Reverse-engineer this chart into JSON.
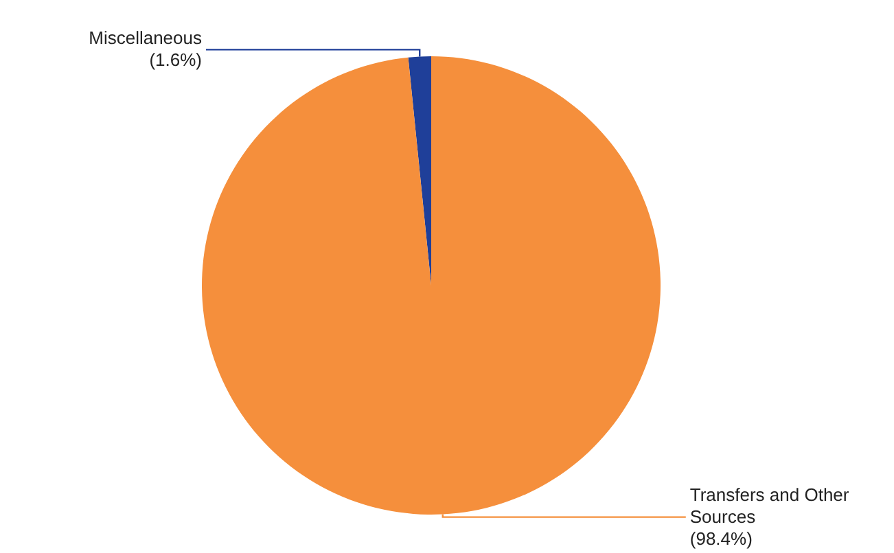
{
  "chart_data": {
    "type": "pie",
    "categories": [
      "Miscellaneous",
      "Transfers and Other Sources"
    ],
    "values": [
      1.6,
      98.4
    ],
    "colors": [
      "#1f3f99",
      "#f58f3c"
    ],
    "value_labels": [
      "(1.6%)",
      "(98.4%)"
    ]
  }
}
